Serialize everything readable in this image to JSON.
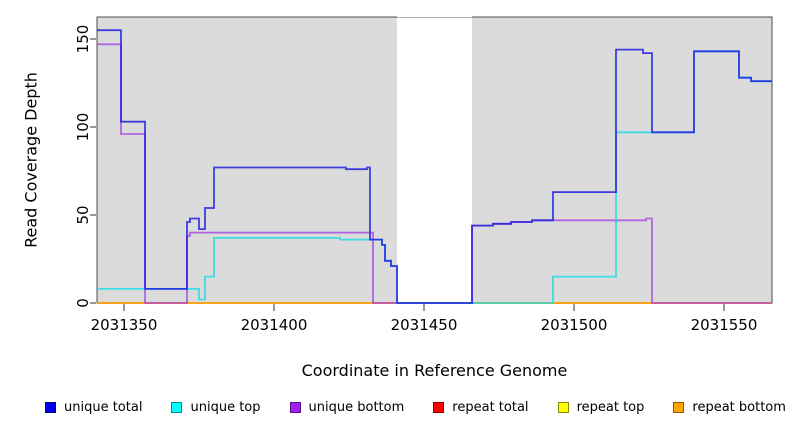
{
  "chart_data": {
    "type": "line",
    "subtype": "step-coverage-plot",
    "xlabel": "Coordinate in Reference Genome",
    "ylabel": "Read Coverage Depth",
    "xlim": [
      2031341,
      2031566
    ],
    "ylim": [
      0,
      162.5
    ],
    "x_ticks": [
      2031350,
      2031400,
      2031450,
      2031500,
      2031550
    ],
    "y_ticks": [
      0,
      50,
      100,
      150
    ],
    "plot_bg": "#dbdbdb",
    "border_color": "#4d4d4d",
    "tick_color": "#333333",
    "gap_region": {
      "start": 2031441,
      "end": 2031466,
      "color": "#ffffff"
    },
    "grid": false,
    "legend_position": "bottom",
    "series": [
      {
        "name": "repeat total",
        "color": "#e02020",
        "opacity": 1,
        "steps": [
          [
            2031341,
            0
          ]
        ]
      },
      {
        "name": "repeat top",
        "color": "#f5f500",
        "opacity": 1,
        "steps": [
          [
            2031341,
            0
          ]
        ]
      },
      {
        "name": "repeat bottom",
        "color": "#ff9d1e",
        "opacity": 1,
        "steps": [
          [
            2031341,
            0
          ]
        ]
      },
      {
        "name": "unique bottom",
        "color": "#a43be0",
        "opacity": 0.75,
        "steps": [
          [
            2031341,
            147
          ],
          [
            2031349,
            96
          ],
          [
            2031357,
            0
          ],
          [
            2031371,
            38
          ],
          [
            2031372,
            40
          ],
          [
            2031433,
            0
          ],
          [
            2031466,
            44
          ],
          [
            2031473,
            45
          ],
          [
            2031479,
            46
          ],
          [
            2031486,
            47
          ],
          [
            2031524,
            48
          ],
          [
            2031526,
            0
          ]
        ]
      },
      {
        "name": "unique top",
        "color": "#18dce8",
        "opacity": 0.8,
        "steps": [
          [
            2031341,
            8
          ],
          [
            2031375,
            2
          ],
          [
            2031377,
            15
          ],
          [
            2031380,
            37
          ],
          [
            2031422,
            36
          ],
          [
            2031436,
            33
          ],
          [
            2031437,
            24
          ],
          [
            2031439,
            21
          ],
          [
            2031441,
            0
          ],
          [
            2031493,
            15
          ],
          [
            2031514,
            97
          ],
          [
            2031540,
            143
          ],
          [
            2031555,
            128
          ],
          [
            2031559,
            126
          ]
        ]
      },
      {
        "name": "unique total",
        "color": "#2121e0",
        "opacity": 0.85,
        "steps": [
          [
            2031341,
            155
          ],
          [
            2031349,
            103
          ],
          [
            2031357,
            8
          ],
          [
            2031371,
            46
          ],
          [
            2031372,
            48
          ],
          [
            2031375,
            42
          ],
          [
            2031377,
            54
          ],
          [
            2031380,
            77
          ],
          [
            2031424,
            76
          ],
          [
            2031431,
            77
          ],
          [
            2031432,
            36
          ],
          [
            2031436,
            33
          ],
          [
            2031437,
            24
          ],
          [
            2031439,
            21
          ],
          [
            2031441,
            0
          ],
          [
            2031466,
            44
          ],
          [
            2031473,
            45
          ],
          [
            2031479,
            46
          ],
          [
            2031486,
            47
          ],
          [
            2031493,
            63
          ],
          [
            2031514,
            144
          ],
          [
            2031523,
            142
          ],
          [
            2031526,
            97
          ],
          [
            2031540,
            143
          ],
          [
            2031555,
            128
          ],
          [
            2031559,
            126
          ]
        ]
      }
    ],
    "legend": [
      {
        "label": "unique total",
        "color": "#0000ee"
      },
      {
        "label": "unique top",
        "color": "#00ffff"
      },
      {
        "label": "unique bottom",
        "color": "#a020f0"
      },
      {
        "label": "repeat total",
        "color": "#ff0000"
      },
      {
        "label": "repeat top",
        "color": "#ffff00"
      },
      {
        "label": "repeat bottom",
        "color": "#ffa500"
      }
    ]
  }
}
